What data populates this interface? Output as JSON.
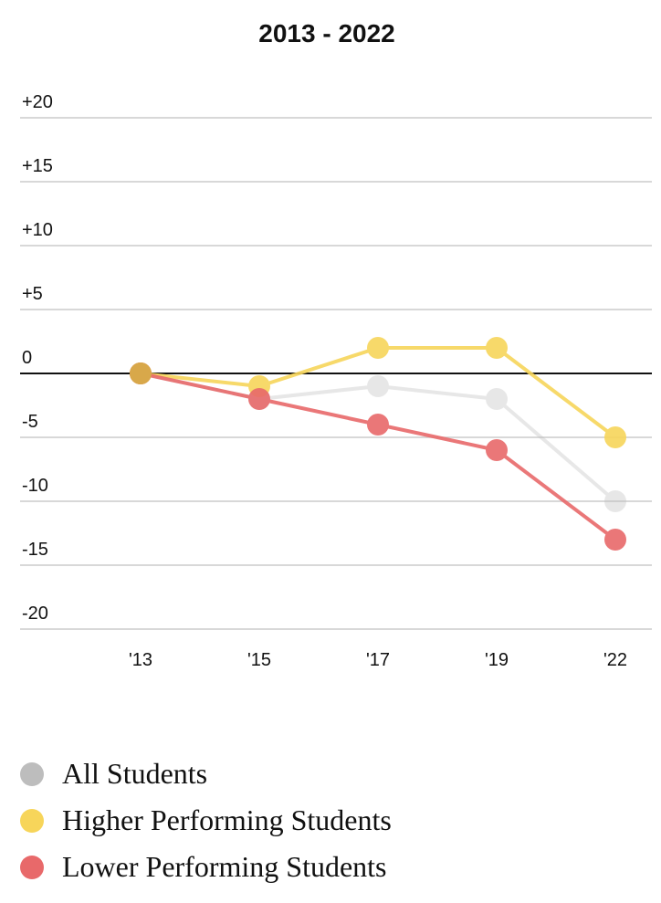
{
  "chart_data": {
    "type": "line",
    "title": "2013 - 2022",
    "categories": [
      "'13",
      "'15",
      "'17",
      "'19",
      "'22"
    ],
    "y_ticks": [
      {
        "value": 20,
        "label": "+20"
      },
      {
        "value": 15,
        "label": "+15"
      },
      {
        "value": 10,
        "label": "+10"
      },
      {
        "value": 5,
        "label": "+5"
      },
      {
        "value": 0,
        "label": "0"
      },
      {
        "value": -5,
        "label": "-5"
      },
      {
        "value": -10,
        "label": "-10"
      },
      {
        "value": -15,
        "label": "-15"
      },
      {
        "value": -20,
        "label": "-20"
      }
    ],
    "ylim": [
      -20,
      20
    ],
    "grid": true,
    "legend_position": "bottom",
    "series": [
      {
        "name": "All Students",
        "values": [
          0,
          -2,
          -1,
          -2,
          -10
        ],
        "color": "#bdbdbd"
      },
      {
        "name": "Higher Performing Students",
        "values": [
          0,
          -1,
          2,
          2,
          -5
        ],
        "color": "#f7d55a"
      },
      {
        "name": "Lower Performing Students",
        "values": [
          0,
          -2,
          -4,
          -6,
          -13
        ],
        "color": "#e8696a"
      }
    ],
    "zero_line_color": "#111111",
    "grid_color": "#cccccc"
  }
}
